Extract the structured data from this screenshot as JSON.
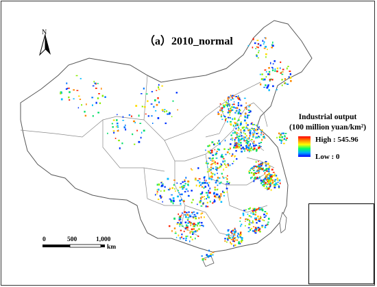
{
  "map": {
    "title": "（a）2010_normal",
    "north_label": "N",
    "legend": {
      "title_line1": "Industrial output",
      "title_line2": "(100 million yuan/km²)",
      "high_label": "High : 545.96",
      "low_label": "Low : 0",
      "gradient_colors": [
        "#ff0000",
        "#ff8800",
        "#ffff00",
        "#00ff66",
        "#00aaff",
        "#0000ff"
      ]
    },
    "scale_bar": {
      "ticks": [
        "0",
        "500",
        "1,000"
      ],
      "unit": "km"
    },
    "colors": {
      "boundary": "#7a7a7a",
      "high": "#ff2200",
      "mid": "#ffcc00",
      "low": "#0033ff"
    }
  }
}
